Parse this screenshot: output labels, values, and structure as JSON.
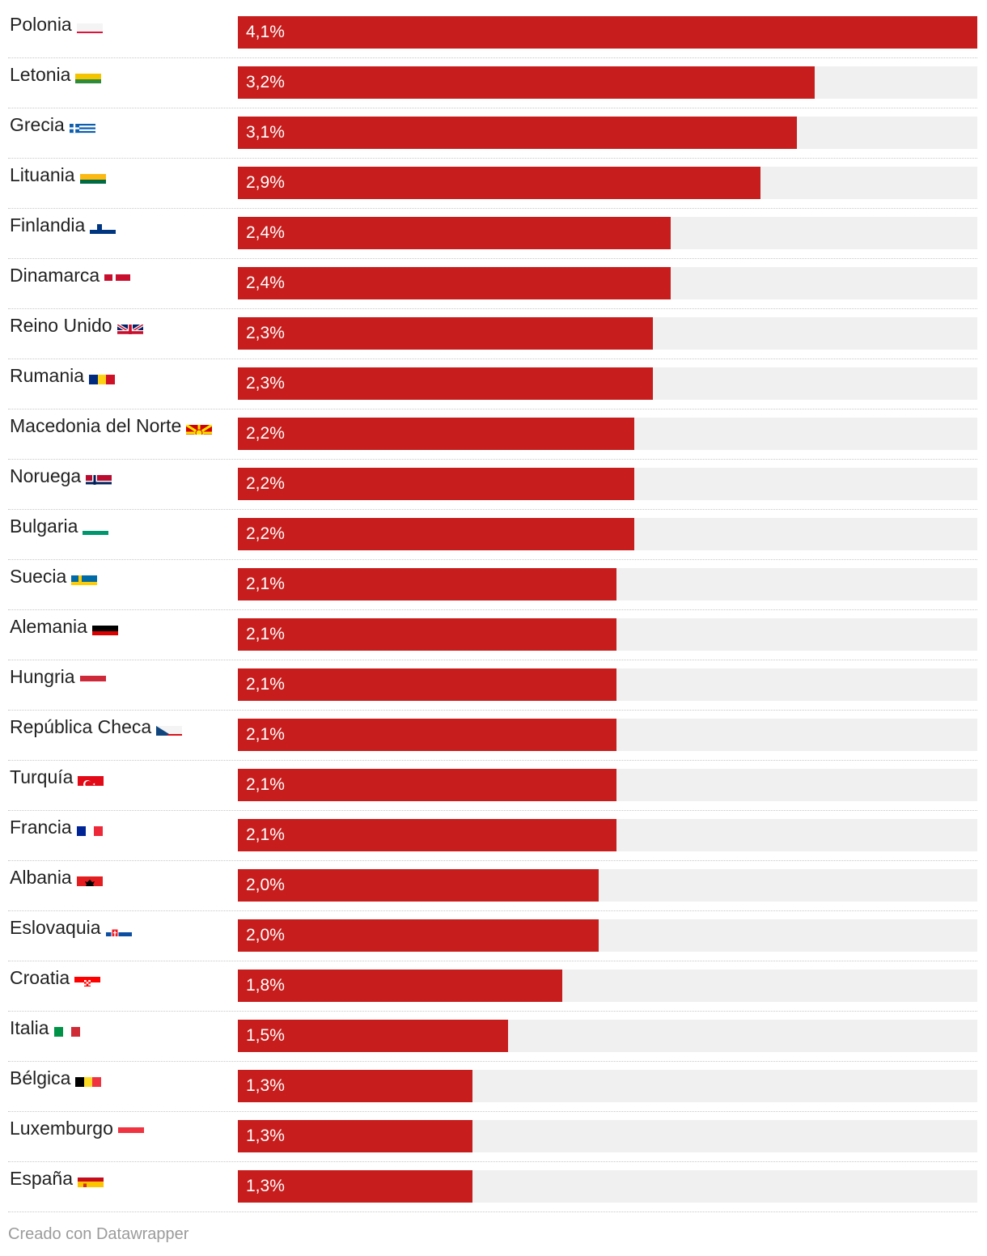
{
  "chart_data": {
    "type": "bar",
    "orientation": "horizontal",
    "categories": [
      "Polonia",
      "Letonia",
      "Grecia",
      "Lituania",
      "Finlandia",
      "Dinamarca",
      "Reino Unido",
      "Rumania",
      "Macedonia del Norte",
      "Noruega",
      "Bulgaria",
      "Suecia",
      "Alemania",
      "Hungria",
      "República Checa",
      "Turquía",
      "Francia",
      "Albania",
      "Eslovaquia",
      "Croatia",
      "Italia",
      "Bélgica",
      "Luxemburgo",
      "España"
    ],
    "values": [
      4.1,
      3.2,
      3.1,
      2.9,
      2.4,
      2.4,
      2.3,
      2.3,
      2.2,
      2.2,
      2.2,
      2.1,
      2.1,
      2.1,
      2.1,
      2.1,
      2.1,
      2.0,
      2.0,
      1.8,
      1.5,
      1.3,
      1.3,
      1.3
    ],
    "value_labels": [
      "4,1%",
      "3,2%",
      "3,1%",
      "2,9%",
      "2,4%",
      "2,4%",
      "2,3%",
      "2,3%",
      "2,2%",
      "2,2%",
      "2,2%",
      "2,1%",
      "2,1%",
      "2,1%",
      "2,1%",
      "2,1%",
      "2,1%",
      "2,0%",
      "2,0%",
      "1,8%",
      "1,5%",
      "1,3%",
      "1,3%",
      "1,3%"
    ],
    "xlim": [
      0,
      4.1
    ],
    "unit": "%",
    "bar_color": "#c71e1d",
    "track_color": "#f0f0f0",
    "grid": false,
    "legend": "none"
  },
  "flags": [
    {
      "icon": "flag-poland-icon"
    },
    {
      "icon": "flag-latvia-icon"
    },
    {
      "icon": "flag-greece-icon"
    },
    {
      "icon": "flag-lithuania-icon"
    },
    {
      "icon": "flag-finland-icon"
    },
    {
      "icon": "flag-denmark-icon"
    },
    {
      "icon": "flag-united-kingdom-icon"
    },
    {
      "icon": "flag-romania-icon"
    },
    {
      "icon": "flag-north-macedonia-icon"
    },
    {
      "icon": "flag-norway-icon"
    },
    {
      "icon": "flag-bulgaria-icon"
    },
    {
      "icon": "flag-sweden-icon"
    },
    {
      "icon": "flag-germany-icon"
    },
    {
      "icon": "flag-hungary-icon"
    },
    {
      "icon": "flag-czech-republic-icon"
    },
    {
      "icon": "flag-turkey-icon"
    },
    {
      "icon": "flag-france-icon"
    },
    {
      "icon": "flag-albania-icon"
    },
    {
      "icon": "flag-slovakia-icon"
    },
    {
      "icon": "flag-croatia-icon"
    },
    {
      "icon": "flag-italy-icon"
    },
    {
      "icon": "flag-belgium-icon"
    },
    {
      "icon": "flag-luxembourg-icon"
    },
    {
      "icon": "flag-spain-icon"
    }
  ],
  "footer": {
    "credit": "Creado con Datawrapper"
  }
}
